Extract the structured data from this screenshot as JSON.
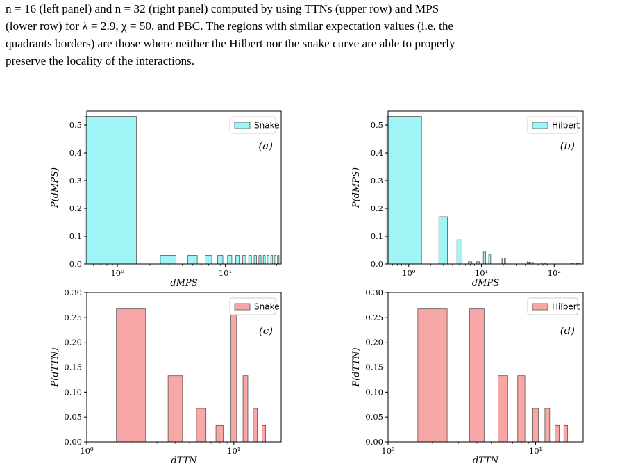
{
  "caption": {
    "line1": "n = 16 (left panel) and n = 32 (right panel) computed by using TTNs (upper row) and MPS",
    "line2": "(lower row) for λ = 2.9, χ = 50, and PBC. The regions with similar expectation values (i.e. the",
    "line3": "quadrants borders) are those where neither the Hilbert nor the snake curve are able to properly",
    "line4": "preserve the locality of the interactions."
  },
  "colors": {
    "mps_bar": "#9ff5f5",
    "ttn_bar": "#f8a7a7",
    "edge": "#555555"
  },
  "chart_data": [
    {
      "type": "bar",
      "panel_label": "(a)",
      "legend": "Snake",
      "xlabel": "dMPS",
      "ylabel": "P(dMPS)",
      "xscale": "log",
      "xlim": [
        0.52,
        33
      ],
      "ylim": [
        0,
        0.55
      ],
      "xticks": [
        {
          "value": 1,
          "label": "10⁰"
        },
        {
          "value": 10,
          "label": "10¹"
        }
      ],
      "yticks": [
        "0.0",
        "0.1",
        "0.2",
        "0.3",
        "0.4",
        "0.5"
      ],
      "x": [
        1,
        3,
        5,
        7,
        9,
        11,
        13,
        15,
        17,
        19,
        21,
        23,
        25,
        27,
        29,
        31
      ],
      "values": [
        0.531,
        0.031,
        0.031,
        0.031,
        0.031,
        0.031,
        0.031,
        0.031,
        0.031,
        0.031,
        0.031,
        0.031,
        0.031,
        0.031,
        0.031,
        0.031
      ]
    },
    {
      "type": "bar",
      "panel_label": "(b)",
      "legend": "Hilbert",
      "xlabel": "dMPS",
      "ylabel": "P(dMPS)",
      "xscale": "log",
      "xlim": [
        0.52,
        250
      ],
      "ylim": [
        0,
        0.55
      ],
      "xticks": [
        {
          "value": 1,
          "label": "10⁰"
        },
        {
          "value": 10,
          "label": "10¹"
        },
        {
          "value": 100,
          "label": "10²"
        }
      ],
      "yticks": [
        "0.0",
        "0.1",
        "0.2",
        "0.3",
        "0.4",
        "0.5"
      ],
      "x": [
        1,
        3,
        5,
        7,
        9,
        11,
        13,
        19,
        21,
        43,
        45,
        47,
        51,
        67,
        73,
        75,
        171,
        181,
        203,
        215
      ],
      "values": [
        0.531,
        0.17,
        0.087,
        0.008,
        0.008,
        0.043,
        0.035,
        0.021,
        0.021,
        0.008,
        0.006,
        0.006,
        0.005,
        0.004,
        0.004,
        0.003,
        0.003,
        0.003,
        0.003,
        0.003
      ]
    },
    {
      "type": "bar",
      "panel_label": "(c)",
      "legend": "Snake",
      "xlabel": "dTTN",
      "ylabel": "P(dTTN)",
      "xscale": "log",
      "xlim": [
        1,
        21
      ],
      "ylim": [
        0,
        0.3
      ],
      "xticks": [
        {
          "value": 1,
          "label": "10⁰"
        },
        {
          "value": 10,
          "label": "10¹"
        }
      ],
      "yticks": [
        "0.00",
        "0.05",
        "0.10",
        "0.15",
        "0.20",
        "0.25",
        "0.30"
      ],
      "x": [
        2,
        4,
        6,
        8,
        10,
        12,
        14,
        16
      ],
      "values": [
        0.267,
        0.133,
        0.067,
        0.033,
        0.267,
        0.133,
        0.067,
        0.033
      ]
    },
    {
      "type": "bar",
      "panel_label": "(d)",
      "legend": "Hilbert",
      "xlabel": "dTTN",
      "ylabel": "P(dTTN)",
      "xscale": "log",
      "xlim": [
        1,
        21
      ],
      "ylim": [
        0,
        0.3
      ],
      "xticks": [
        {
          "value": 1,
          "label": "10⁰"
        },
        {
          "value": 10,
          "label": "10¹"
        }
      ],
      "yticks": [
        "0.00",
        "0.05",
        "0.10",
        "0.15",
        "0.20",
        "0.25",
        "0.30"
      ],
      "x": [
        2,
        4,
        6,
        8,
        10,
        12,
        14,
        16
      ],
      "values": [
        0.267,
        0.267,
        0.133,
        0.133,
        0.067,
        0.067,
        0.033,
        0.033
      ]
    }
  ]
}
